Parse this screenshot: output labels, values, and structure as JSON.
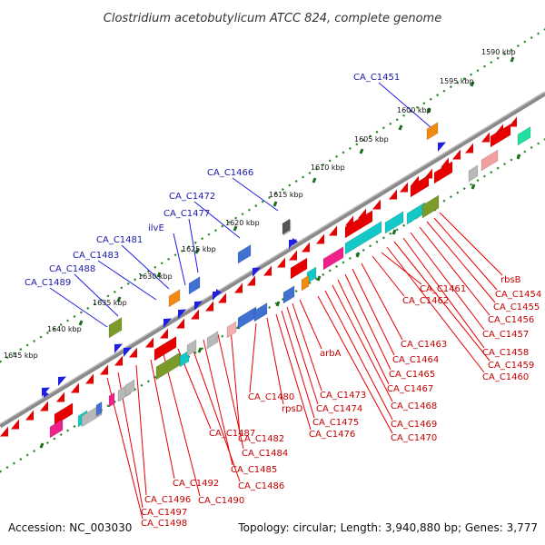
{
  "title": "Clostridium acetobutylicum ATCC 824, complete genome",
  "accession": "Accession: NC_003030",
  "topology": "Topology: circular; Length: 3,940,880 bp; Genes: 3,777",
  "colors": {
    "backbone": "#8a8a8a",
    "ticks": "#2a8a2a",
    "forward": "#1f1fe0",
    "reverse": "#e60000",
    "label_forward": "#1a1aa8",
    "label_reverse": "#c40000"
  },
  "kbp_labels": [
    "1590 kbp",
    "1595 kbp",
    "1600 kbp",
    "1605 kbp",
    "1610 kbp",
    "1615 kbp",
    "1620 kbp",
    "1625 kbp",
    "1630 kbp",
    "1635 kbp",
    "1640 kbp",
    "1645 kbp"
  ],
  "forward_labels": [
    "CA_C1451",
    "CA_C1466",
    "CA_C1472",
    "CA_C1477",
    "ilvE",
    "CA_C1481",
    "CA_C1483",
    "CA_C1488",
    "CA_C1489"
  ],
  "reverse_labels": [
    "rbsB",
    "CA_C1454",
    "CA_C1455",
    "CA_C1456",
    "CA_C1457",
    "CA_C1458",
    "CA_C1459",
    "CA_C1460",
    "CA_C1461",
    "CA_C1462",
    "CA_C1463",
    "CA_C1464",
    "CA_C1465",
    "CA_C1467",
    "CA_C1468",
    "CA_C1469",
    "CA_C1470",
    "arbA",
    "CA_C1473",
    "CA_C1474",
    "CA_C1475",
    "CA_C1476",
    "rpsD",
    "CA_C1480",
    "CA_C1482",
    "CA_C1484",
    "CA_C1485",
    "CA_C1486",
    "CA_C1487",
    "CA_C1490",
    "CA_C1492",
    "CA_C1496",
    "CA_C1497",
    "CA_C1498"
  ]
}
